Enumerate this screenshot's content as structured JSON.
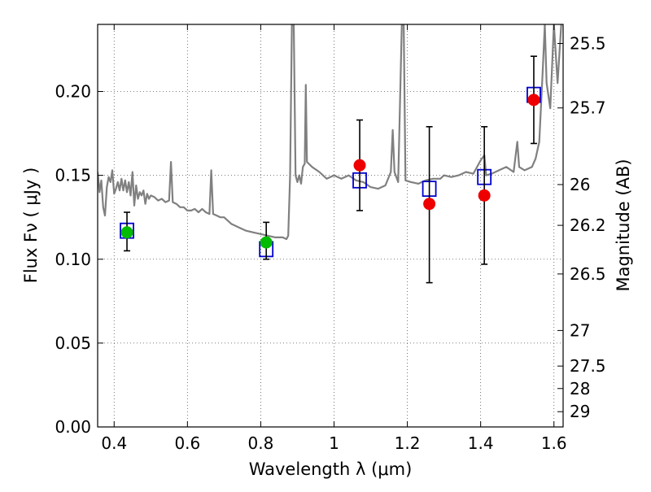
{
  "chart_data": {
    "type": "scatter",
    "title": "",
    "xlabel": "Wavelength  λ (μm)",
    "ylabel": "Flux  Fν ( μJy )",
    "ylabel_right": "Magnitude (AB)",
    "xlim": [
      0.355,
      1.625
    ],
    "ylim": [
      0.0,
      0.24
    ],
    "grid": true,
    "x_ticks": [
      {
        "value": 0.4,
        "label": "0.4"
      },
      {
        "value": 0.6,
        "label": "0.6"
      },
      {
        "value": 0.8,
        "label": "0.8"
      },
      {
        "value": 1.0,
        "label": "1"
      },
      {
        "value": 1.2,
        "label": "1.2"
      },
      {
        "value": 1.4,
        "label": "1.4"
      },
      {
        "value": 1.6,
        "label": "1.6"
      }
    ],
    "y_ticks": [
      {
        "value": 0.0,
        "label": "0.00"
      },
      {
        "value": 0.05,
        "label": "0.05"
      },
      {
        "value": 0.1,
        "label": "0.10"
      },
      {
        "value": 0.15,
        "label": "0.15"
      },
      {
        "value": 0.2,
        "label": "0.20"
      }
    ],
    "right_ticks": [
      {
        "flux": 0.2286,
        "label": "25.5"
      },
      {
        "flux": 0.1902,
        "label": "25.7"
      },
      {
        "flux": 0.1445,
        "label": "26"
      },
      {
        "flux": 0.1202,
        "label": "26.2"
      },
      {
        "flux": 0.0912,
        "label": "26.5"
      },
      {
        "flux": 0.0575,
        "label": "27"
      },
      {
        "flux": 0.0363,
        "label": "27.5"
      },
      {
        "flux": 0.0229,
        "label": "28"
      },
      {
        "flux": 0.0091,
        "label": "29"
      }
    ],
    "colors": {
      "spectrum": "#808080",
      "model_box": "#0000cc",
      "detection": "#00bb00",
      "measurement": "#ee0000",
      "errorbar": "#000000",
      "grid": "#555555"
    },
    "series": [
      {
        "style": "model-spectrum-line",
        "points": [
          [
            0.355,
            0.152
          ],
          [
            0.36,
            0.14
          ],
          [
            0.365,
            0.147
          ],
          [
            0.37,
            0.131
          ],
          [
            0.375,
            0.126
          ],
          [
            0.38,
            0.143
          ],
          [
            0.385,
            0.149
          ],
          [
            0.39,
            0.146
          ],
          [
            0.395,
            0.153
          ],
          [
            0.4,
            0.139
          ],
          [
            0.405,
            0.142
          ],
          [
            0.41,
            0.146
          ],
          [
            0.415,
            0.141
          ],
          [
            0.42,
            0.148
          ],
          [
            0.425,
            0.141
          ],
          [
            0.43,
            0.147
          ],
          [
            0.435,
            0.14
          ],
          [
            0.44,
            0.146
          ],
          [
            0.445,
            0.138
          ],
          [
            0.45,
            0.152
          ],
          [
            0.455,
            0.132
          ],
          [
            0.46,
            0.144
          ],
          [
            0.465,
            0.136
          ],
          [
            0.47,
            0.14
          ],
          [
            0.475,
            0.138
          ],
          [
            0.48,
            0.141
          ],
          [
            0.485,
            0.133
          ],
          [
            0.49,
            0.139
          ],
          [
            0.495,
            0.136
          ],
          [
            0.5,
            0.138
          ],
          [
            0.51,
            0.137
          ],
          [
            0.52,
            0.135
          ],
          [
            0.53,
            0.136
          ],
          [
            0.54,
            0.134
          ],
          [
            0.55,
            0.135
          ],
          [
            0.555,
            0.158
          ],
          [
            0.56,
            0.134
          ],
          [
            0.57,
            0.133
          ],
          [
            0.58,
            0.131
          ],
          [
            0.59,
            0.131
          ],
          [
            0.6,
            0.129
          ],
          [
            0.61,
            0.129
          ],
          [
            0.62,
            0.13
          ],
          [
            0.63,
            0.128
          ],
          [
            0.64,
            0.13
          ],
          [
            0.65,
            0.128
          ],
          [
            0.66,
            0.127
          ],
          [
            0.665,
            0.153
          ],
          [
            0.67,
            0.127
          ],
          [
            0.68,
            0.126
          ],
          [
            0.69,
            0.125
          ],
          [
            0.7,
            0.125
          ],
          [
            0.72,
            0.121
          ],
          [
            0.74,
            0.119
          ],
          [
            0.76,
            0.117
          ],
          [
            0.78,
            0.116
          ],
          [
            0.8,
            0.115
          ],
          [
            0.82,
            0.114
          ],
          [
            0.84,
            0.113
          ],
          [
            0.86,
            0.113
          ],
          [
            0.87,
            0.112
          ],
          [
            0.875,
            0.114
          ],
          [
            0.88,
            0.15
          ],
          [
            0.885,
            0.24
          ],
          [
            0.89,
            0.24
          ],
          [
            0.895,
            0.15
          ],
          [
            0.9,
            0.146
          ],
          [
            0.905,
            0.15
          ],
          [
            0.91,
            0.145
          ],
          [
            0.915,
            0.155
          ],
          [
            0.92,
            0.157
          ],
          [
            0.923,
            0.204
          ],
          [
            0.926,
            0.158
          ],
          [
            0.94,
            0.155
          ],
          [
            0.96,
            0.152
          ],
          [
            0.98,
            0.148
          ],
          [
            1.0,
            0.15
          ],
          [
            1.02,
            0.148
          ],
          [
            1.04,
            0.15
          ],
          [
            1.06,
            0.147
          ],
          [
            1.08,
            0.146
          ],
          [
            1.1,
            0.143
          ],
          [
            1.12,
            0.142
          ],
          [
            1.14,
            0.144
          ],
          [
            1.155,
            0.152
          ],
          [
            1.16,
            0.177
          ],
          [
            1.165,
            0.152
          ],
          [
            1.175,
            0.146
          ],
          [
            1.185,
            0.24
          ],
          [
            1.19,
            0.24
          ],
          [
            1.195,
            0.147
          ],
          [
            1.21,
            0.146
          ],
          [
            1.23,
            0.145
          ],
          [
            1.25,
            0.147
          ],
          [
            1.27,
            0.148
          ],
          [
            1.29,
            0.148
          ],
          [
            1.3,
            0.15
          ],
          [
            1.32,
            0.149
          ],
          [
            1.34,
            0.15
          ],
          [
            1.36,
            0.152
          ],
          [
            1.38,
            0.151
          ],
          [
            1.4,
            0.159
          ],
          [
            1.41,
            0.162
          ],
          [
            1.415,
            0.15
          ],
          [
            1.43,
            0.151
          ],
          [
            1.45,
            0.153
          ],
          [
            1.47,
            0.155
          ],
          [
            1.49,
            0.152
          ],
          [
            1.5,
            0.17
          ],
          [
            1.505,
            0.155
          ],
          [
            1.52,
            0.153
          ],
          [
            1.54,
            0.155
          ],
          [
            1.55,
            0.16
          ],
          [
            1.56,
            0.17
          ],
          [
            1.57,
            0.215
          ],
          [
            1.575,
            0.24
          ],
          [
            1.58,
            0.205
          ],
          [
            1.59,
            0.19
          ],
          [
            1.6,
            0.24
          ],
          [
            1.61,
            0.205
          ],
          [
            1.62,
            0.24
          ]
        ]
      },
      {
        "style": "open-blue-squares",
        "points": [
          [
            0.435,
            0.117
          ],
          [
            0.815,
            0.106
          ],
          [
            1.07,
            0.147
          ],
          [
            1.26,
            0.142
          ],
          [
            1.41,
            0.149
          ],
          [
            1.545,
            0.198
          ]
        ]
      },
      {
        "style": "green-circles-with-errorbars",
        "points": [
          {
            "x": 0.435,
            "y": 0.116,
            "yerr_low": 0.105,
            "yerr_high": 0.128
          },
          {
            "x": 0.815,
            "y": 0.11,
            "yerr_low": 0.1,
            "yerr_high": 0.122
          }
        ]
      },
      {
        "style": "red-circles-with-errorbars",
        "points": [
          {
            "x": 1.07,
            "y": 0.156,
            "yerr_low": 0.129,
            "yerr_high": 0.183
          },
          {
            "x": 1.26,
            "y": 0.133,
            "yerr_low": 0.086,
            "yerr_high": 0.179
          },
          {
            "x": 1.41,
            "y": 0.138,
            "yerr_low": 0.097,
            "yerr_high": 0.179
          },
          {
            "x": 1.545,
            "y": 0.195,
            "yerr_low": 0.169,
            "yerr_high": 0.221
          }
        ]
      }
    ]
  }
}
